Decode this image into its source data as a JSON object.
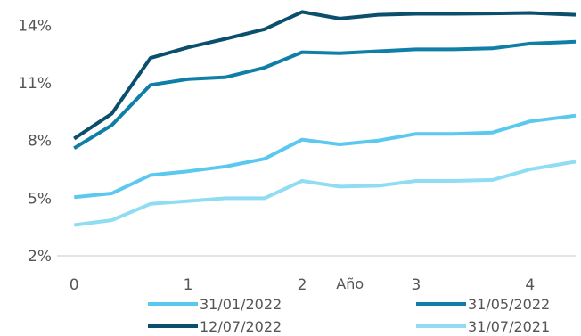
{
  "chart_data": {
    "type": "line",
    "title": "",
    "xlabel": "Año",
    "ylabel": "",
    "x": [
      0,
      0.33,
      0.67,
      1.0,
      1.33,
      1.67,
      2.0,
      2.33,
      2.67,
      3.0,
      3.33,
      3.67,
      4.0,
      4.4
    ],
    "xticks": [
      0,
      1,
      2,
      3,
      4
    ],
    "xtick_labels": [
      "0",
      "1",
      "2",
      "3",
      "4"
    ],
    "yticks": [
      2,
      5,
      8,
      11,
      14
    ],
    "ytick_labels": [
      "2%",
      "5%",
      "8%",
      "11%",
      "14%"
    ],
    "xlim": [
      -0.15,
      4.4
    ],
    "ylim": [
      2,
      14.3
    ],
    "grid": false,
    "legend_position": "bottom",
    "series": [
      {
        "name": "31/01/2022",
        "color": "#5bc8f0",
        "values": [
          5.05,
          5.25,
          6.2,
          6.4,
          6.65,
          7.05,
          8.05,
          7.8,
          8.0,
          8.35,
          8.35,
          8.42,
          9.0,
          9.3
        ]
      },
      {
        "name": "31/05/2022",
        "color": "#0f7fa8",
        "values": [
          7.6,
          8.8,
          10.9,
          11.2,
          11.3,
          11.8,
          12.6,
          12.55,
          12.65,
          12.75,
          12.75,
          12.8,
          13.05,
          13.15
        ]
      },
      {
        "name": "12/07/2022",
        "color": "#0b4f6c",
        "values": [
          8.1,
          9.4,
          12.3,
          12.85,
          13.3,
          13.8,
          14.7,
          14.35,
          14.55,
          14.6,
          14.6,
          14.62,
          14.65,
          14.55
        ]
      },
      {
        "name": "31/07/2021",
        "color": "#8fdcf3",
        "values": [
          3.6,
          3.85,
          4.7,
          4.85,
          5.0,
          5.0,
          5.9,
          5.6,
          5.65,
          5.9,
          5.9,
          5.95,
          6.5,
          6.9
        ]
      }
    ]
  }
}
